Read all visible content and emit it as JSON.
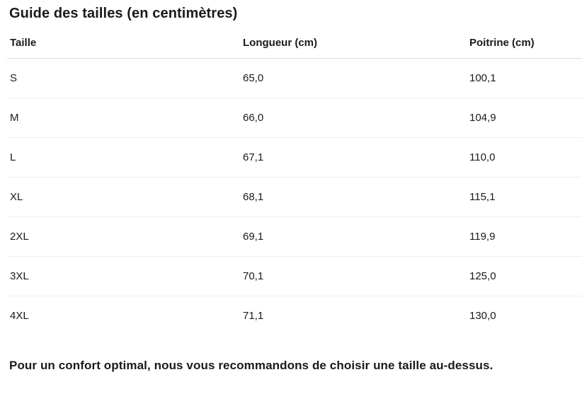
{
  "title": "Guide des tailles (en centimètres)",
  "size_guide": {
    "columns": [
      "Taille",
      "Longueur (cm)",
      "Poitrine (cm)"
    ],
    "rows": [
      {
        "taille": "S",
        "longueur": "65,0",
        "poitrine": "100,1"
      },
      {
        "taille": "M",
        "longueur": "66,0",
        "poitrine": "104,9"
      },
      {
        "taille": "L",
        "longueur": "67,1",
        "poitrine": "110,0"
      },
      {
        "taille": "XL",
        "longueur": "68,1",
        "poitrine": "115,1"
      },
      {
        "taille": "2XL",
        "longueur": "69,1",
        "poitrine": "119,9"
      },
      {
        "taille": "3XL",
        "longueur": "70,1",
        "poitrine": "125,0"
      },
      {
        "taille": "4XL",
        "longueur": "71,1",
        "poitrine": "130,0"
      }
    ]
  },
  "footer": {
    "note": "Pour un confort optimal, nous vous recommandons de choisir une taille au-dessus."
  },
  "colors": {
    "text": "#1a1a1a",
    "header_border": "#d8d8d8",
    "row_border": "#eeeeee",
    "background": "#ffffff"
  }
}
